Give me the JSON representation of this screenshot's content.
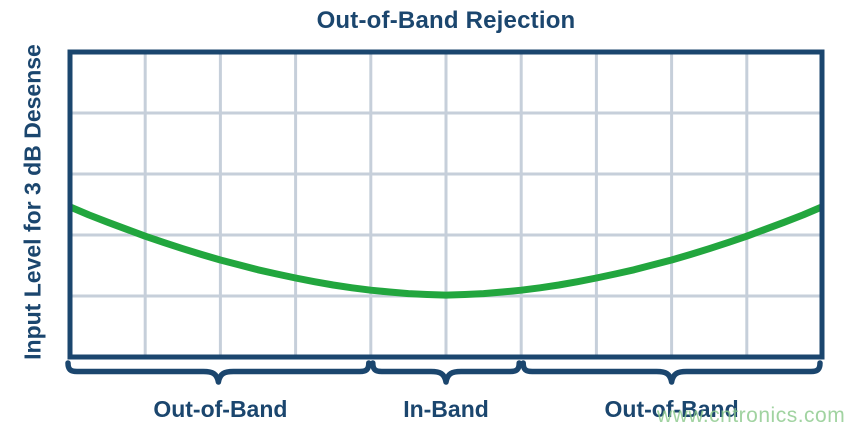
{
  "colors": {
    "navy": "#1b466e",
    "gridline": "#c6cfda",
    "curve_green": "#22a63e",
    "watermark_green": "#8dca8d",
    "background": "#ffffff"
  },
  "chart_data": {
    "type": "line",
    "title": "Out-of-Band Rejection",
    "ylabel": "Input Level for 3 dB Desense",
    "xlabel": "",
    "legend": "none",
    "grid": {
      "columns": 10,
      "rows": 5,
      "on": true
    },
    "axes": {
      "tick_labels_visible": false,
      "x_range_grid_units": [
        0,
        10
      ],
      "y_range_fraction": [
        0,
        1
      ]
    },
    "series": [
      {
        "name": "input-level-for-3db-desense",
        "color": "#22a63e",
        "points_x_fraction_y_fraction_from_top": [
          [
            0.0,
            0.508
          ],
          [
            0.025,
            0.534
          ],
          [
            0.05,
            0.558
          ],
          [
            0.075,
            0.581
          ],
          [
            0.1,
            0.604
          ],
          [
            0.125,
            0.625
          ],
          [
            0.15,
            0.645
          ],
          [
            0.175,
            0.664
          ],
          [
            0.2,
            0.682
          ],
          [
            0.225,
            0.698
          ],
          [
            0.25,
            0.714
          ],
          [
            0.275,
            0.728
          ],
          [
            0.3,
            0.741
          ],
          [
            0.325,
            0.753
          ],
          [
            0.35,
            0.764
          ],
          [
            0.375,
            0.773
          ],
          [
            0.4,
            0.781
          ],
          [
            0.425,
            0.787
          ],
          [
            0.45,
            0.792
          ],
          [
            0.475,
            0.795
          ],
          [
            0.5,
            0.797
          ],
          [
            0.525,
            0.795
          ],
          [
            0.55,
            0.792
          ],
          [
            0.575,
            0.787
          ],
          [
            0.6,
            0.781
          ],
          [
            0.625,
            0.773
          ],
          [
            0.65,
            0.764
          ],
          [
            0.675,
            0.753
          ],
          [
            0.7,
            0.741
          ],
          [
            0.725,
            0.728
          ],
          [
            0.75,
            0.714
          ],
          [
            0.775,
            0.698
          ],
          [
            0.8,
            0.682
          ],
          [
            0.825,
            0.664
          ],
          [
            0.85,
            0.645
          ],
          [
            0.875,
            0.625
          ],
          [
            0.9,
            0.604
          ],
          [
            0.925,
            0.581
          ],
          [
            0.95,
            0.558
          ],
          [
            0.975,
            0.534
          ],
          [
            1.0,
            0.508
          ]
        ]
      }
    ],
    "bands": [
      {
        "label": "Out-of-Band",
        "x_start_grid": 0,
        "x_end_grid": 4
      },
      {
        "label": "In-Band",
        "x_start_grid": 4,
        "x_end_grid": 6
      },
      {
        "label": "Out-of-Band",
        "x_start_grid": 6,
        "x_end_grid": 10
      }
    ]
  },
  "watermark": {
    "text": "www.cntronics.com"
  }
}
